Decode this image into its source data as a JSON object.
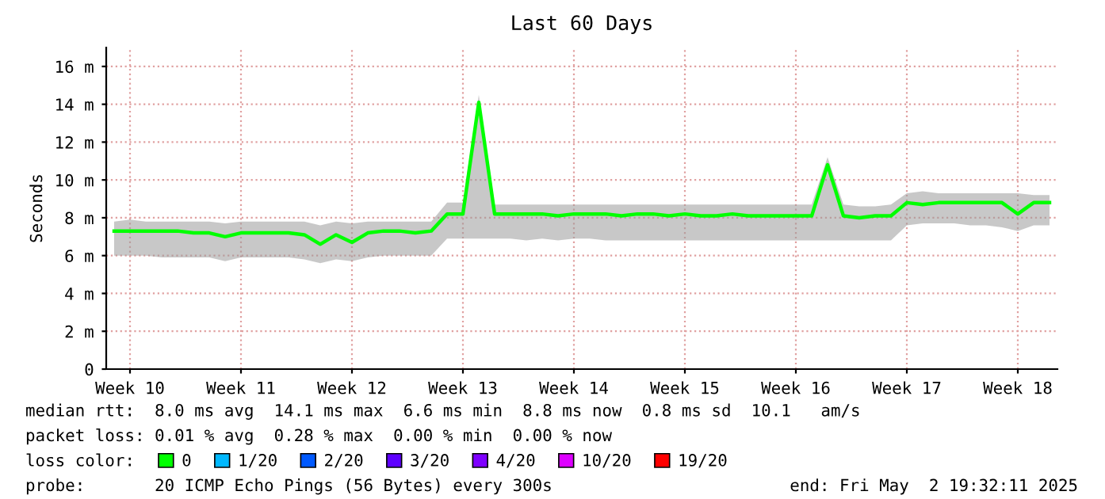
{
  "chart_data": {
    "type": "line",
    "title": "Last 60 Days",
    "ylabel": "Seconds",
    "ylim": [
      0,
      17
    ],
    "categories": [
      null,
      "Week 10",
      null,
      null,
      null,
      null,
      null,
      null,
      "Week 11",
      null,
      null,
      null,
      null,
      null,
      null,
      "Week 12",
      null,
      null,
      null,
      null,
      null,
      null,
      "Week 13",
      null,
      null,
      null,
      null,
      null,
      null,
      "Week 14",
      null,
      null,
      null,
      null,
      null,
      null,
      "Week 15",
      null,
      null,
      null,
      null,
      null,
      null,
      "Week 16",
      null,
      null,
      null,
      null,
      null,
      null,
      "Week 17",
      null,
      null,
      null,
      null,
      null,
      null,
      "Week 18",
      null,
      null
    ],
    "yticks": [
      0,
      {
        "value": 2,
        "label": "2 m"
      },
      {
        "value": 4,
        "label": "4 m"
      },
      {
        "value": 6,
        "label": "6 m"
      },
      {
        "value": 8,
        "label": "8 m"
      },
      {
        "value": 10,
        "label": "10 m"
      },
      {
        "value": 12,
        "label": "12 m"
      },
      {
        "value": 14,
        "label": "14 m"
      },
      {
        "value": 16,
        "label": "16 m"
      }
    ],
    "grid": true,
    "legend": "bottom",
    "legend_title": "loss color:",
    "marker": "none",
    "line_style": "solid",
    "series": [
      {
        "name": "0",
        "color": "#00ff00",
        "values": [
          7.3,
          7.3,
          7.3,
          7.3,
          7.3,
          7.2,
          7.2,
          7.0,
          7.2,
          7.2,
          7.2,
          7.2,
          7.1,
          6.6,
          7.1,
          6.7,
          7.2,
          7.3,
          7.3,
          7.2,
          7.3,
          8.2,
          8.2,
          14.1,
          8.2,
          8.2,
          8.2,
          8.2,
          8.1,
          8.2,
          8.2,
          8.2,
          8.1,
          8.2,
          8.2,
          8.1,
          8.2,
          8.1,
          8.1,
          8.2,
          8.1,
          8.1,
          8.1,
          8.1,
          8.1,
          10.8,
          8.1,
          8.0,
          8.1,
          8.1,
          8.8,
          8.7,
          8.8,
          8.8,
          8.8,
          8.8,
          8.8,
          8.2,
          8.8,
          8.8
        ],
        "lower": [
          6.0,
          6.0,
          6.0,
          5.9,
          5.9,
          5.9,
          5.9,
          5.7,
          5.9,
          5.9,
          5.9,
          5.9,
          5.8,
          5.6,
          5.8,
          5.7,
          5.9,
          6.0,
          6.0,
          6.0,
          6.0,
          6.9,
          6.9,
          6.9,
          6.9,
          6.9,
          6.8,
          6.9,
          6.8,
          6.9,
          6.9,
          6.8,
          6.8,
          6.8,
          6.8,
          6.8,
          6.8,
          6.8,
          6.8,
          6.8,
          6.8,
          6.8,
          6.8,
          6.8,
          6.8,
          6.8,
          6.8,
          6.8,
          6.8,
          6.8,
          7.6,
          7.7,
          7.7,
          7.7,
          7.6,
          7.6,
          7.5,
          7.3,
          7.6,
          7.6
        ],
        "upper": [
          7.8,
          7.9,
          7.8,
          7.8,
          7.8,
          7.8,
          7.8,
          7.7,
          7.8,
          7.8,
          7.8,
          7.8,
          7.8,
          7.6,
          7.8,
          7.7,
          7.8,
          7.8,
          7.8,
          7.8,
          7.8,
          8.8,
          8.8,
          14.5,
          8.7,
          8.7,
          8.7,
          8.7,
          8.7,
          8.7,
          8.7,
          8.7,
          8.7,
          8.7,
          8.7,
          8.7,
          8.7,
          8.7,
          8.7,
          8.7,
          8.7,
          8.7,
          8.7,
          8.7,
          8.7,
          11.2,
          8.7,
          8.6,
          8.6,
          8.7,
          9.3,
          9.4,
          9.3,
          9.3,
          9.3,
          9.3,
          9.3,
          9.3,
          9.2,
          9.2
        ]
      },
      {
        "name": "1/20",
        "color": "#00b8ff",
        "values": [
          null,
          null,
          null,
          null,
          null,
          null,
          null,
          null,
          null,
          null,
          null,
          null,
          null,
          null,
          null,
          null,
          null,
          null,
          null,
          null,
          null,
          null,
          null,
          null,
          null,
          null,
          null,
          null,
          null,
          null,
          null,
          null,
          null,
          null,
          null,
          null,
          null,
          null,
          null,
          null,
          null,
          null,
          null,
          null,
          null,
          null,
          null,
          null,
          null,
          null,
          null,
          null,
          null,
          null,
          null,
          null,
          null,
          null,
          null,
          null
        ]
      },
      {
        "name": "2/20",
        "color": "#0059ff",
        "values": [
          null,
          null,
          null,
          null,
          null,
          null,
          null,
          null,
          null,
          null,
          null,
          null,
          null,
          null,
          null,
          null,
          null,
          null,
          null,
          null,
          null,
          null,
          null,
          null,
          null,
          null,
          null,
          null,
          null,
          null,
          null,
          null,
          null,
          null,
          null,
          null,
          null,
          null,
          null,
          null,
          null,
          null,
          null,
          null,
          null,
          null,
          null,
          null,
          null,
          null,
          null,
          null,
          null,
          null,
          null,
          null,
          null,
          null,
          null,
          null
        ]
      },
      {
        "name": "3/20",
        "color": "#5e00ff",
        "values": [
          null,
          null,
          null,
          null,
          null,
          null,
          null,
          null,
          null,
          null,
          null,
          null,
          null,
          null,
          null,
          null,
          null,
          null,
          null,
          null,
          null,
          null,
          null,
          null,
          null,
          null,
          null,
          null,
          null,
          null,
          null,
          null,
          null,
          null,
          null,
          null,
          null,
          null,
          null,
          null,
          null,
          null,
          null,
          null,
          null,
          null,
          null,
          null,
          null,
          null,
          null,
          null,
          null,
          null,
          null,
          null,
          null,
          null,
          null,
          null
        ]
      },
      {
        "name": "4/20",
        "color": "#7e00ff",
        "values": [
          null,
          null,
          null,
          null,
          null,
          null,
          null,
          null,
          null,
          null,
          null,
          null,
          null,
          null,
          null,
          null,
          null,
          null,
          null,
          null,
          null,
          null,
          null,
          null,
          null,
          null,
          null,
          null,
          null,
          null,
          null,
          null,
          null,
          null,
          null,
          null,
          null,
          null,
          null,
          null,
          null,
          null,
          null,
          null,
          null,
          null,
          null,
          null,
          null,
          null,
          null,
          null,
          null,
          null,
          null,
          null,
          null,
          null,
          null,
          null
        ]
      },
      {
        "name": "10/20",
        "color": "#dd00ff",
        "values": [
          null,
          null,
          null,
          null,
          null,
          null,
          null,
          null,
          null,
          null,
          null,
          null,
          null,
          null,
          null,
          null,
          null,
          null,
          null,
          null,
          null,
          null,
          null,
          null,
          null,
          null,
          null,
          null,
          null,
          null,
          null,
          null,
          null,
          null,
          null,
          null,
          null,
          null,
          null,
          null,
          null,
          null,
          null,
          null,
          null,
          null,
          null,
          null,
          null,
          null,
          null,
          null,
          null,
          null,
          null,
          null,
          null,
          null,
          null,
          null
        ]
      },
      {
        "name": "19/20",
        "color": "#ff0000",
        "values": [
          null,
          null,
          null,
          null,
          null,
          null,
          null,
          null,
          null,
          null,
          null,
          null,
          null,
          null,
          null,
          null,
          null,
          null,
          null,
          null,
          null,
          null,
          null,
          null,
          null,
          null,
          null,
          null,
          null,
          null,
          null,
          null,
          null,
          null,
          null,
          null,
          null,
          null,
          null,
          null,
          null,
          null,
          null,
          null,
          null,
          null,
          null,
          null,
          null,
          null,
          null,
          null,
          null,
          null,
          null,
          null,
          null,
          null,
          null,
          null
        ]
      }
    ],
    "annotations": [
      "median rtt:  8.0 ms avg  14.1 ms max  6.6 ms min  8.8 ms now  0.8 ms sd  10.1   am/s",
      "packet loss: 0.01 % avg  0.28 % max  0.00 % min  0.00 % now",
      "probe:       20 ICMP Echo Pings (56 Bytes) every 300s",
      "end: Fri May  2 19:32:11 2025"
    ]
  }
}
